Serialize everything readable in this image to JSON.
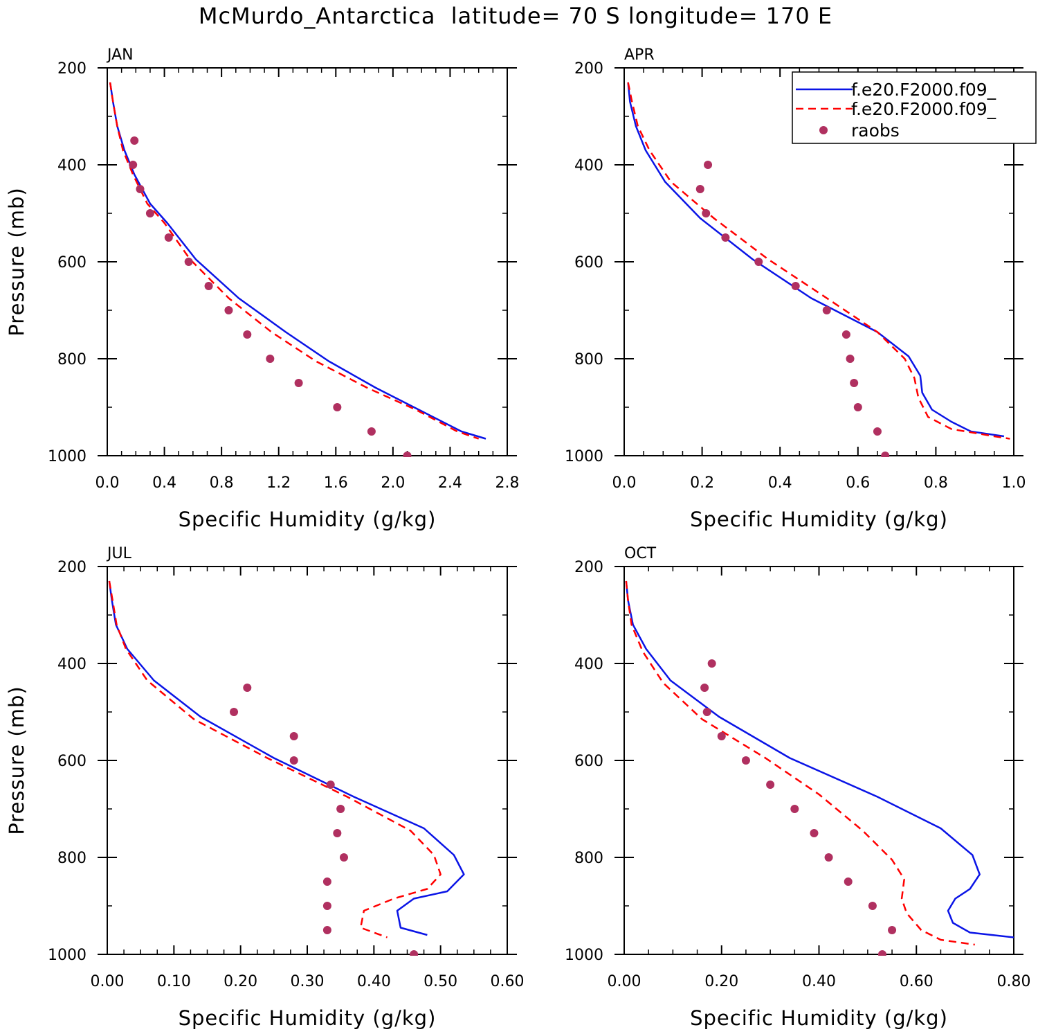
{
  "chart_data": [
    {
      "type": "line",
      "title": "JAN",
      "xlabel": "Specific Humidity (g/kg)",
      "ylabel": "Pressure (mb)",
      "xlim": [
        0,
        2.8
      ],
      "ylim": [
        200,
        1000
      ],
      "xticks": [
        "0.0",
        "0.4",
        "0.8",
        "1.2",
        "1.6",
        "2.0",
        "2.4",
        "2.8"
      ],
      "yticks": [
        "200",
        "400",
        "600",
        "800",
        "1000"
      ],
      "series": [
        {
          "name": "f.e20.F2000.f09_",
          "style": "solid",
          "color": "#0a14e6",
          "points": [
            [
              0.02,
              230
            ],
            [
              0.04,
              270
            ],
            [
              0.07,
              320
            ],
            [
              0.12,
              370
            ],
            [
              0.19,
              420
            ],
            [
              0.3,
              480
            ],
            [
              0.42,
              520
            ],
            [
              0.62,
              595
            ],
            [
              0.92,
              675
            ],
            [
              1.25,
              745
            ],
            [
              1.55,
              805
            ],
            [
              1.88,
              860
            ],
            [
              2.18,
              905
            ],
            [
              2.48,
              950
            ],
            [
              2.65,
              965
            ]
          ]
        },
        {
          "name": "f.e20.F2000.f09_",
          "style": "dashed",
          "color": "#ff0000",
          "points": [
            [
              0.02,
              230
            ],
            [
              0.04,
              270
            ],
            [
              0.07,
              320
            ],
            [
              0.11,
              370
            ],
            [
              0.18,
              420
            ],
            [
              0.28,
              480
            ],
            [
              0.4,
              520
            ],
            [
              0.58,
              595
            ],
            [
              0.85,
              675
            ],
            [
              1.15,
              745
            ],
            [
              1.46,
              805
            ],
            [
              1.82,
              860
            ],
            [
              2.16,
              905
            ],
            [
              2.45,
              950
            ],
            [
              2.6,
              965
            ]
          ]
        },
        {
          "name": "raobs",
          "style": "marker",
          "color": "#b03060",
          "points": [
            [
              0.19,
              350
            ],
            [
              0.18,
              400
            ],
            [
              0.23,
              450
            ],
            [
              0.3,
              500
            ],
            [
              0.43,
              550
            ],
            [
              0.57,
              600
            ],
            [
              0.71,
              650
            ],
            [
              0.85,
              700
            ],
            [
              0.98,
              750
            ],
            [
              1.14,
              800
            ],
            [
              1.34,
              850
            ],
            [
              1.61,
              900
            ],
            [
              1.85,
              950
            ],
            [
              2.1,
              1000
            ]
          ]
        }
      ]
    },
    {
      "type": "line",
      "title": "APR",
      "xlabel": "Specific Humidity (g/kg)",
      "ylabel": "",
      "xlim": [
        0,
        1.0
      ],
      "ylim": [
        200,
        1000
      ],
      "xticks": [
        "0.0",
        "0.2",
        "0.4",
        "0.6",
        "0.8",
        "1.0"
      ],
      "yticks": [
        "200",
        "400",
        "600",
        "800",
        "1000"
      ],
      "series": [
        {
          "name": "f.e20.F2000.f09_",
          "style": "solid",
          "color": "#0a14e6",
          "points": [
            [
              0.01,
              230
            ],
            [
              0.015,
              270
            ],
            [
              0.03,
              320
            ],
            [
              0.055,
              370
            ],
            [
              0.105,
              435
            ],
            [
              0.195,
              510
            ],
            [
              0.33,
              595
            ],
            [
              0.48,
              675
            ],
            [
              0.65,
              745
            ],
            [
              0.73,
              795
            ],
            [
              0.76,
              835
            ],
            [
              0.765,
              870
            ],
            [
              0.79,
              905
            ],
            [
              0.84,
              930
            ],
            [
              0.89,
              950
            ],
            [
              0.975,
              960
            ]
          ]
        },
        {
          "name": "f.e20.F2000.f09_",
          "style": "dashed",
          "color": "#ff0000",
          "points": [
            [
              0.01,
              230
            ],
            [
              0.02,
              270
            ],
            [
              0.035,
              320
            ],
            [
              0.065,
              370
            ],
            [
              0.12,
              435
            ],
            [
              0.23,
              510
            ],
            [
              0.37,
              595
            ],
            [
              0.52,
              675
            ],
            [
              0.65,
              745
            ],
            [
              0.72,
              800
            ],
            [
              0.745,
              840
            ],
            [
              0.755,
              880
            ],
            [
              0.78,
              920
            ],
            [
              0.84,
              945
            ],
            [
              0.95,
              960
            ],
            [
              0.99,
              965
            ]
          ]
        },
        {
          "name": "raobs",
          "style": "marker",
          "color": "#b03060",
          "points": [
            [
              0.215,
              400
            ],
            [
              0.195,
              450
            ],
            [
              0.21,
              500
            ],
            [
              0.26,
              550
            ],
            [
              0.345,
              600
            ],
            [
              0.44,
              650
            ],
            [
              0.52,
              700
            ],
            [
              0.57,
              750
            ],
            [
              0.58,
              800
            ],
            [
              0.59,
              850
            ],
            [
              0.6,
              900
            ],
            [
              0.65,
              950
            ],
            [
              0.67,
              1000
            ]
          ]
        }
      ],
      "legend": {
        "position": "top-right",
        "entries": [
          "f.e20.F2000.f09_",
          "f.e20.F2000.f09_",
          "raobs"
        ]
      }
    },
    {
      "type": "line",
      "title": "JUL",
      "xlabel": "Specific Humidity (g/kg)",
      "ylabel": "Pressure (mb)",
      "xlim": [
        0,
        0.6
      ],
      "ylim": [
        200,
        1000
      ],
      "xticks": [
        "0.00",
        "0.10",
        "0.20",
        "0.30",
        "0.40",
        "0.50",
        "0.60"
      ],
      "yticks": [
        "200",
        "400",
        "600",
        "800",
        "1000"
      ],
      "series": [
        {
          "name": "f.e20.F2000.f09_",
          "style": "solid",
          "color": "#0a14e6",
          "points": [
            [
              0.003,
              230
            ],
            [
              0.007,
              270
            ],
            [
              0.013,
              320
            ],
            [
              0.03,
              370
            ],
            [
              0.07,
              435
            ],
            [
              0.14,
              510
            ],
            [
              0.25,
              595
            ],
            [
              0.37,
              675
            ],
            [
              0.475,
              740
            ],
            [
              0.52,
              795
            ],
            [
              0.535,
              835
            ],
            [
              0.51,
              870
            ],
            [
              0.46,
              885
            ],
            [
              0.435,
              910
            ],
            [
              0.44,
              945
            ],
            [
              0.48,
              960
            ]
          ]
        },
        {
          "name": "f.e20.F2000.f09_",
          "style": "dashed",
          "color": "#ff0000",
          "points": [
            [
              0.003,
              230
            ],
            [
              0.008,
              270
            ],
            [
              0.014,
              320
            ],
            [
              0.028,
              370
            ],
            [
              0.06,
              435
            ],
            [
              0.13,
              515
            ],
            [
              0.24,
              595
            ],
            [
              0.36,
              675
            ],
            [
              0.455,
              745
            ],
            [
              0.49,
              795
            ],
            [
              0.5,
              835
            ],
            [
              0.48,
              865
            ],
            [
              0.43,
              885
            ],
            [
              0.385,
              910
            ],
            [
              0.38,
              945
            ],
            [
              0.42,
              965
            ]
          ]
        },
        {
          "name": "raobs",
          "style": "marker",
          "color": "#b03060",
          "points": [
            [
              0.21,
              450
            ],
            [
              0.19,
              500
            ],
            [
              0.28,
              550
            ],
            [
              0.28,
              600
            ],
            [
              0.335,
              650
            ],
            [
              0.35,
              700
            ],
            [
              0.345,
              750
            ],
            [
              0.355,
              800
            ],
            [
              0.33,
              850
            ],
            [
              0.33,
              900
            ],
            [
              0.33,
              950
            ],
            [
              0.46,
              1000
            ]
          ]
        }
      ]
    },
    {
      "type": "line",
      "title": "OCT",
      "xlabel": "Specific Humidity (g/kg)",
      "ylabel": "",
      "xlim": [
        0,
        0.8
      ],
      "ylim": [
        200,
        1000
      ],
      "xticks": [
        "0.00",
        "0.20",
        "0.40",
        "0.60",
        "0.80"
      ],
      "yticks": [
        "200",
        "400",
        "600",
        "800",
        "1000"
      ],
      "series": [
        {
          "name": "f.e20.F2000.f09_",
          "style": "solid",
          "color": "#0a14e6",
          "points": [
            [
              0.004,
              230
            ],
            [
              0.008,
              270
            ],
            [
              0.018,
              320
            ],
            [
              0.045,
              370
            ],
            [
              0.095,
              435
            ],
            [
              0.195,
              510
            ],
            [
              0.34,
              595
            ],
            [
              0.52,
              675
            ],
            [
              0.65,
              740
            ],
            [
              0.715,
              795
            ],
            [
              0.73,
              835
            ],
            [
              0.71,
              865
            ],
            [
              0.68,
              885
            ],
            [
              0.665,
              910
            ],
            [
              0.675,
              935
            ],
            [
              0.71,
              955
            ],
            [
              0.8,
              965
            ]
          ]
        },
        {
          "name": "f.e20.F2000.f09_",
          "style": "dashed",
          "color": "#ff0000",
          "points": [
            [
              0.004,
              230
            ],
            [
              0.008,
              270
            ],
            [
              0.015,
              320
            ],
            [
              0.038,
              375
            ],
            [
              0.08,
              440
            ],
            [
              0.16,
              515
            ],
            [
              0.29,
              595
            ],
            [
              0.4,
              670
            ],
            [
              0.49,
              745
            ],
            [
              0.55,
              805
            ],
            [
              0.575,
              845
            ],
            [
              0.57,
              885
            ],
            [
              0.58,
              915
            ],
            [
              0.61,
              950
            ],
            [
              0.65,
              970
            ],
            [
              0.72,
              980
            ]
          ]
        },
        {
          "name": "raobs",
          "style": "marker",
          "color": "#b03060",
          "points": [
            [
              0.18,
              400
            ],
            [
              0.165,
              450
            ],
            [
              0.17,
              500
            ],
            [
              0.2,
              550
            ],
            [
              0.25,
              600
            ],
            [
              0.3,
              650
            ],
            [
              0.35,
              700
            ],
            [
              0.39,
              750
            ],
            [
              0.42,
              800
            ],
            [
              0.46,
              850
            ],
            [
              0.51,
              900
            ],
            [
              0.55,
              950
            ],
            [
              0.53,
              1000
            ]
          ]
        }
      ]
    }
  ],
  "figure": {
    "title": "McMurdo_Antarctica  latitude= 70 S longitude= 170 E"
  }
}
